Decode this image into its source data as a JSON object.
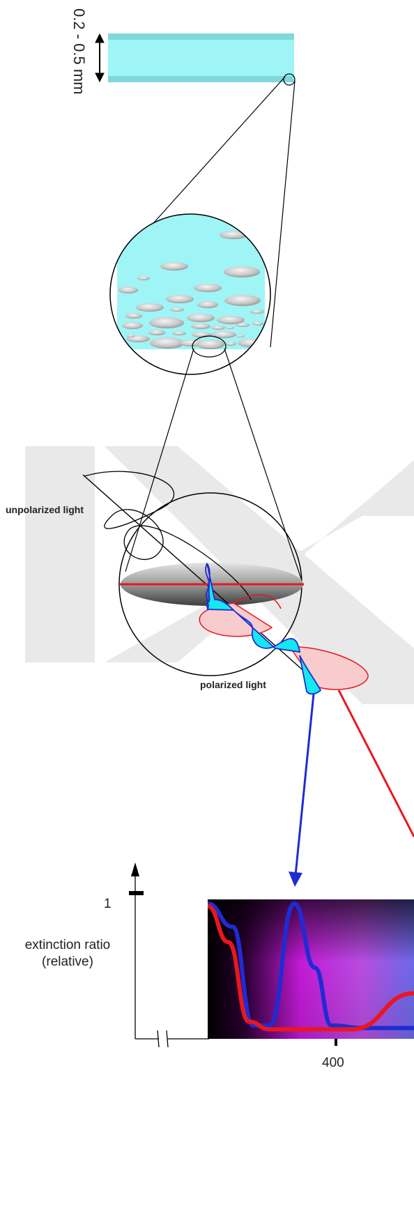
{
  "labels": {
    "thickness": "0.2 - 0.5 mm",
    "unpolarized": "unpolarized light",
    "polarized": "polarized light",
    "y_tick": "1",
    "y_label_line1": "extinction ratio",
    "y_label_line2": "(relative)",
    "x_tick": "400"
  },
  "colors": {
    "glass": "#9ff4f6",
    "glass_band": "#7ed8dc",
    "particle_light": "#f4f4f4",
    "particle_dark": "#8d8d8d",
    "red_wave": "#e8171f",
    "red_fill": "#f8cccc",
    "blue_wave": "#1f2bd4",
    "cyan_fill": "#14e8f0",
    "watermark": "#e9e9e9"
  },
  "chart_data": {
    "type": "line",
    "ylabel": "extinction ratio (relative)",
    "yticks": [
      "1"
    ],
    "xticks": [
      "400"
    ],
    "series": [
      {
        "color": "blue",
        "points": [
          [
            0,
            1.0
          ],
          [
            0.12,
            0.82
          ],
          [
            0.22,
            0.05
          ],
          [
            0.3,
            0.05
          ],
          [
            0.42,
            1.0
          ],
          [
            0.52,
            0.5
          ],
          [
            0.6,
            0.05
          ],
          [
            0.75,
            0.03
          ],
          [
            1.0,
            0.03
          ]
        ]
      },
      {
        "color": "red",
        "points": [
          [
            0,
            0.98
          ],
          [
            0.1,
            0.7
          ],
          [
            0.2,
            0.08
          ],
          [
            0.3,
            0.02
          ],
          [
            0.7,
            0.02
          ],
          [
            1.0,
            0.3
          ]
        ]
      }
    ]
  }
}
